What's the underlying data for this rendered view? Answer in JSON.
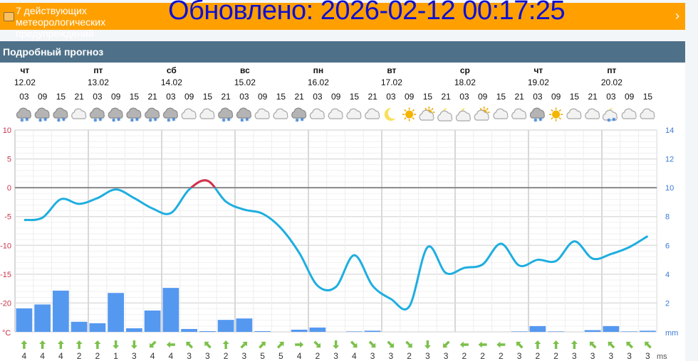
{
  "overlay": {
    "updated": "Обновлено: 2026-02-12 00:17:25"
  },
  "banner": {
    "text": "7 действующих метеорологических предупреждений",
    "icon": "warning-icon",
    "chevron": "›"
  },
  "header": {
    "title": "Подробный прогноз"
  },
  "days": [
    {
      "name": "чт",
      "date": "12.02"
    },
    {
      "name": "пт",
      "date": "13.02"
    },
    {
      "name": "сб",
      "date": "14.02"
    },
    {
      "name": "вс",
      "date": "15.02"
    },
    {
      "name": "пн",
      "date": "16.02"
    },
    {
      "name": "вт",
      "date": "17.02"
    },
    {
      "name": "ср",
      "date": "18.02"
    },
    {
      "name": "чт",
      "date": "19.02"
    },
    {
      "name": "пт",
      "date": "20.02"
    }
  ],
  "hours": [
    "03",
    "09",
    "15",
    "21",
    "03",
    "09",
    "15",
    "21",
    "03",
    "09",
    "15",
    "21",
    "03",
    "09",
    "15",
    "21",
    "03",
    "09",
    "15",
    "21",
    "03",
    "09",
    "15",
    "21",
    "03",
    "09",
    "15",
    "21",
    "03",
    "09",
    "15",
    "21",
    "03",
    "09",
    "15"
  ],
  "icons": [
    "snow-cloud",
    "snow-cloud",
    "snow-cloud",
    "cloud",
    "snow-cloud",
    "snow-cloud",
    "snow-cloud",
    "snow-cloud",
    "snow-cloud",
    "cloud",
    "cloud",
    "snow-cloud",
    "snow-cloud",
    "cloud",
    "cloud",
    "snow-cloud",
    "cloud",
    "cloud",
    "cloud",
    "cloud",
    "moon",
    "sun",
    "sun-cloud",
    "moon-cloud",
    "moon-cloud",
    "sun-cloud",
    "cloud",
    "cloud",
    "snow-cloud",
    "sun",
    "cloud",
    "cloud",
    "moon-cloud-snow",
    "cloud",
    "cloud"
  ],
  "colors": {
    "temp_line": "#1eaee0",
    "temp_above_zero": "#d9304a",
    "precip_bar": "#5598f0",
    "wind_arrow": "#7cc04a",
    "left_axis": "#c8344a",
    "right_axis": "#3a7bd5",
    "banner": "#ffa000",
    "header": "#4e7189"
  },
  "chart_data": {
    "type": "line+bar",
    "left_axis": {
      "unit": "°C",
      "ticks": [
        "10",
        "5",
        "0",
        "-5",
        "-10",
        "-15",
        "-20"
      ],
      "range": [
        -25,
        10
      ]
    },
    "right_axis": {
      "unit": "mm",
      "ticks": [
        "14",
        "12",
        "10",
        "8",
        "6",
        "4",
        "2"
      ],
      "range": [
        0,
        14
      ]
    },
    "grid": true,
    "temperature": [
      -5.6,
      -5.2,
      -2.0,
      -2.8,
      -1.8,
      -0.3,
      -1.8,
      -3.6,
      -4.4,
      -0.3,
      1.2,
      -2.4,
      -3.8,
      -4.5,
      -7.0,
      -11.3,
      -17.0,
      -17.2,
      -11.7,
      -17.0,
      -19.3,
      -20.6,
      -10.3,
      -14.8,
      -13.9,
      -13.3,
      -9.7,
      -13.5,
      -12.5,
      -12.7,
      -9.3,
      -12.3,
      -11.5,
      -10.3,
      -8.4
    ],
    "precipitation": [
      1.63,
      1.9,
      2.86,
      0.7,
      0.6,
      2.7,
      0.25,
      1.48,
      3.05,
      0.2,
      0.05,
      0.83,
      0.93,
      0.05,
      0,
      0.15,
      0.3,
      0,
      0.03,
      0.08,
      0,
      0,
      0,
      0,
      0,
      0,
      0,
      0.03,
      0.4,
      0.03,
      0,
      0.12,
      0.4,
      0.03,
      0.08
    ]
  },
  "wind": {
    "unit": "ms",
    "speeds": [
      "4",
      "4",
      "4",
      "2",
      "2",
      "1",
      "3",
      "4",
      "4",
      "3",
      "3",
      "2",
      "3",
      "5",
      "5",
      "4",
      "2",
      "3",
      "4",
      "3",
      "3",
      "2",
      "3",
      "3",
      "2",
      "2",
      "2",
      "3",
      "2",
      "2",
      "3",
      "3",
      "3",
      "3",
      "3"
    ],
    "directions": [
      "up",
      "up",
      "up",
      "up",
      "up",
      "down",
      "down",
      "down-left",
      "left",
      "up-left",
      "up-left",
      "up",
      "up-right",
      "up-right",
      "up-right",
      "right",
      "down-right",
      "down",
      "down-right",
      "down-right",
      "down-right",
      "down-right",
      "down",
      "down-left",
      "left",
      "left",
      "left",
      "up-left",
      "up",
      "up",
      "up",
      "up-left",
      "up-left",
      "up-left",
      "up-left"
    ]
  }
}
